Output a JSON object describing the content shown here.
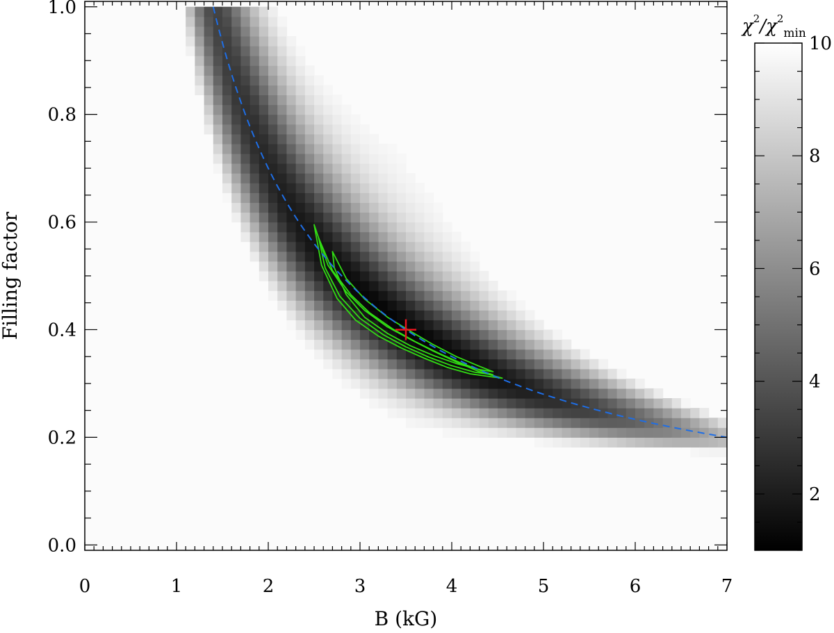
{
  "chart_data": {
    "type": "heatmap",
    "xlabel": "B (kG)",
    "ylabel": "Filling factor",
    "xlim": [
      0,
      7
    ],
    "ylim": [
      -0.01,
      1.01
    ],
    "xticks": [
      0,
      1,
      2,
      3,
      4,
      5,
      6,
      7
    ],
    "xtick_labels": [
      "0",
      "1",
      "2",
      "3",
      "4",
      "5",
      "6",
      "7"
    ],
    "yticks": [
      0.0,
      0.2,
      0.4,
      0.6,
      0.8,
      1.0
    ],
    "ytick_labels": [
      "0.0",
      "0.2",
      "0.4",
      "0.6",
      "0.8",
      "1.0"
    ],
    "grid": false,
    "colormap": "gray",
    "heatmap_grid": {
      "x_range": [
        0,
        7
      ],
      "y_range": [
        0,
        1
      ],
      "nx": 70,
      "ny": 55
    },
    "colorbar": {
      "title_parts": [
        "χ",
        "2",
        "/χ",
        "2",
        "min"
      ],
      "range": [
        1,
        10
      ],
      "ticks": [
        2,
        4,
        6,
        8,
        10
      ],
      "tick_labels": [
        "2",
        "4",
        "6",
        "8",
        "10"
      ],
      "low_color": "#000000",
      "high_color": "#ffffff"
    },
    "fit_curve": {
      "name": "B·f = const",
      "product": 1.4,
      "x_range": [
        1.4,
        7.0
      ],
      "color": "#1e6ee6",
      "style": "dashed"
    },
    "best_fit": {
      "x": 3.5,
      "y": 0.4,
      "marker": "plus",
      "color": "#e8141e"
    },
    "contours": {
      "color": "#32dc14",
      "levels": [
        [
          [
            2.5,
            0.595
          ],
          [
            2.65,
            0.52
          ],
          [
            2.85,
            0.47
          ],
          [
            3.05,
            0.436
          ],
          [
            3.3,
            0.405
          ],
          [
            3.55,
            0.382
          ],
          [
            3.8,
            0.36
          ],
          [
            4.05,
            0.34
          ],
          [
            4.3,
            0.322
          ],
          [
            4.55,
            0.31
          ],
          [
            4.45,
            0.312
          ],
          [
            4.2,
            0.318
          ],
          [
            3.95,
            0.33
          ],
          [
            3.7,
            0.347
          ],
          [
            3.45,
            0.366
          ],
          [
            3.2,
            0.388
          ],
          [
            2.95,
            0.418
          ],
          [
            2.75,
            0.458
          ],
          [
            2.58,
            0.52
          ],
          [
            2.5,
            0.595
          ]
        ],
        [
          [
            2.55,
            0.57
          ],
          [
            2.7,
            0.51
          ],
          [
            2.9,
            0.465
          ],
          [
            3.1,
            0.432
          ],
          [
            3.35,
            0.402
          ],
          [
            3.6,
            0.378
          ],
          [
            3.85,
            0.357
          ],
          [
            4.1,
            0.338
          ],
          [
            4.35,
            0.322
          ],
          [
            4.45,
            0.316
          ],
          [
            4.25,
            0.321
          ],
          [
            4.0,
            0.333
          ],
          [
            3.75,
            0.349
          ],
          [
            3.5,
            0.368
          ],
          [
            3.25,
            0.391
          ],
          [
            3.0,
            0.421
          ],
          [
            2.78,
            0.462
          ],
          [
            2.62,
            0.515
          ],
          [
            2.55,
            0.57
          ]
        ],
        [
          [
            2.7,
            0.545
          ],
          [
            2.85,
            0.495
          ],
          [
            3.05,
            0.457
          ],
          [
            3.3,
            0.423
          ],
          [
            3.55,
            0.397
          ],
          [
            3.8,
            0.372
          ],
          [
            4.05,
            0.35
          ],
          [
            4.3,
            0.332
          ],
          [
            4.45,
            0.322
          ],
          [
            4.3,
            0.326
          ],
          [
            4.05,
            0.337
          ],
          [
            3.8,
            0.352
          ],
          [
            3.55,
            0.37
          ],
          [
            3.3,
            0.393
          ],
          [
            3.05,
            0.423
          ],
          [
            2.85,
            0.465
          ],
          [
            2.72,
            0.515
          ],
          [
            2.7,
            0.545
          ]
        ]
      ]
    }
  }
}
